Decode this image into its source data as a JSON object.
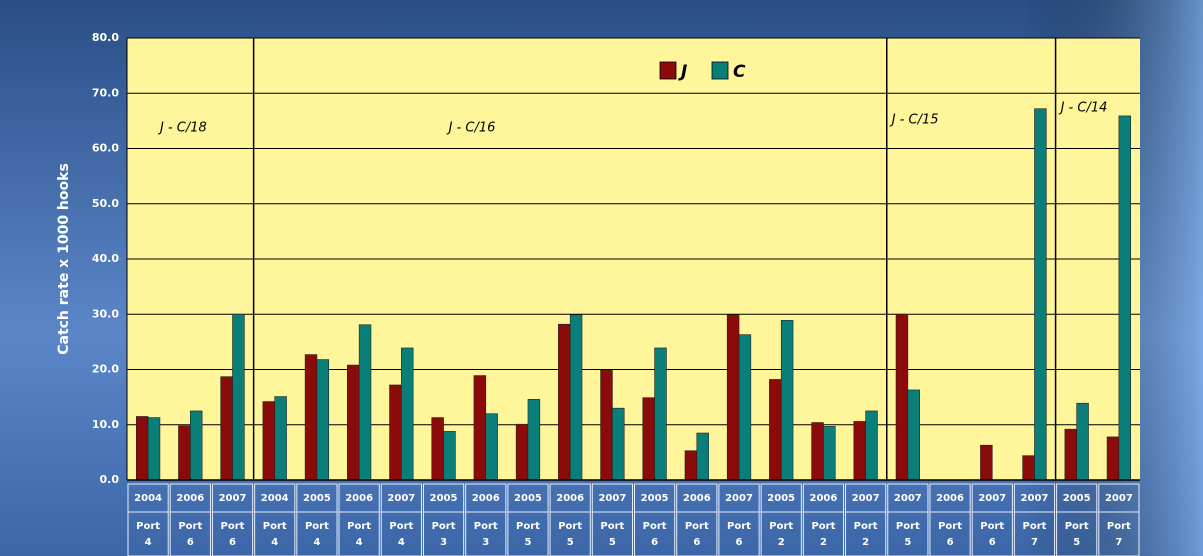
{
  "chart_data": {
    "type": "bar",
    "y_label": "Catch rate x 1000 hooks",
    "categories": [
      {
        "year": "2004",
        "port": "Port 4"
      },
      {
        "year": "2006",
        "port": "Port 6"
      },
      {
        "year": "2007",
        "port": "Port 6"
      },
      {
        "year": "2004",
        "port": "Port 4"
      },
      {
        "year": "2005",
        "port": "Port 4"
      },
      {
        "year": "2006",
        "port": "Port 4"
      },
      {
        "year": "2007",
        "port": "Port 4"
      },
      {
        "year": "2005",
        "port": "Port 3"
      },
      {
        "year": "2006",
        "port": "Port 3"
      },
      {
        "year": "2005",
        "port": "Port 5"
      },
      {
        "year": "2006",
        "port": "Port 5"
      },
      {
        "year": "2007",
        "port": "Port 5"
      },
      {
        "year": "2005",
        "port": "Port 6"
      },
      {
        "year": "2006",
        "port": "Port 6"
      },
      {
        "year": "2007",
        "port": "Port 6"
      },
      {
        "year": "2005",
        "port": "Port 2"
      },
      {
        "year": "2006",
        "port": "Port 2"
      },
      {
        "year": "2007",
        "port": "Port 2"
      },
      {
        "year": "2007",
        "port": "Port 5"
      },
      {
        "year": "2006",
        "port": "Port 6"
      },
      {
        "year": "2007",
        "port": "Port 6"
      },
      {
        "year": "2007",
        "port": "Port 7"
      },
      {
        "year": "2005",
        "port": "Port 5"
      },
      {
        "year": "2007",
        "port": "Port 7"
      }
    ],
    "groups": [
      {
        "label": "J - C/18",
        "count": 3
      },
      {
        "label": "J - C/16",
        "count": 15
      },
      {
        "label": "J - C/15",
        "count": 4
      },
      {
        "label": "J - C/14",
        "count": 2
      }
    ],
    "series": [
      {
        "name": "J",
        "color": "#8b0a0a",
        "values": [
          11.5,
          9.8,
          18.7,
          14.2,
          22.7,
          20.8,
          17.2,
          11.3,
          18.9,
          10.1,
          28.2,
          19.9,
          14.9,
          5.3,
          29.9,
          18.2,
          10.4,
          10.6,
          30.0,
          null,
          6.3,
          4.4,
          9.2,
          7.8
        ]
      },
      {
        "name": "C",
        "color": "#0a7f7a",
        "values": [
          11.3,
          12.5,
          30.0,
          15.1,
          21.8,
          28.1,
          23.9,
          8.8,
          12.0,
          14.6,
          29.9,
          13.0,
          23.9,
          8.5,
          26.3,
          28.9,
          9.7,
          12.5,
          16.3,
          null,
          null,
          67.2,
          13.9,
          65.9
        ]
      }
    ],
    "ylim": [
      0,
      80
    ],
    "yticks": [
      {
        "value": 0,
        "label": "0.0"
      },
      {
        "value": 10,
        "label": "10.0"
      },
      {
        "value": 20,
        "label": "20.0"
      },
      {
        "value": 30,
        "label": "30.0"
      },
      {
        "value": 40,
        "label": "40.0"
      },
      {
        "value": 50,
        "label": "50.0"
      },
      {
        "value": 60,
        "label": "60.0"
      },
      {
        "value": 70,
        "label": "70.0"
      },
      {
        "value": 80,
        "label": "80.0"
      }
    ],
    "grid": true,
    "plot_color": "#fff59a"
  }
}
